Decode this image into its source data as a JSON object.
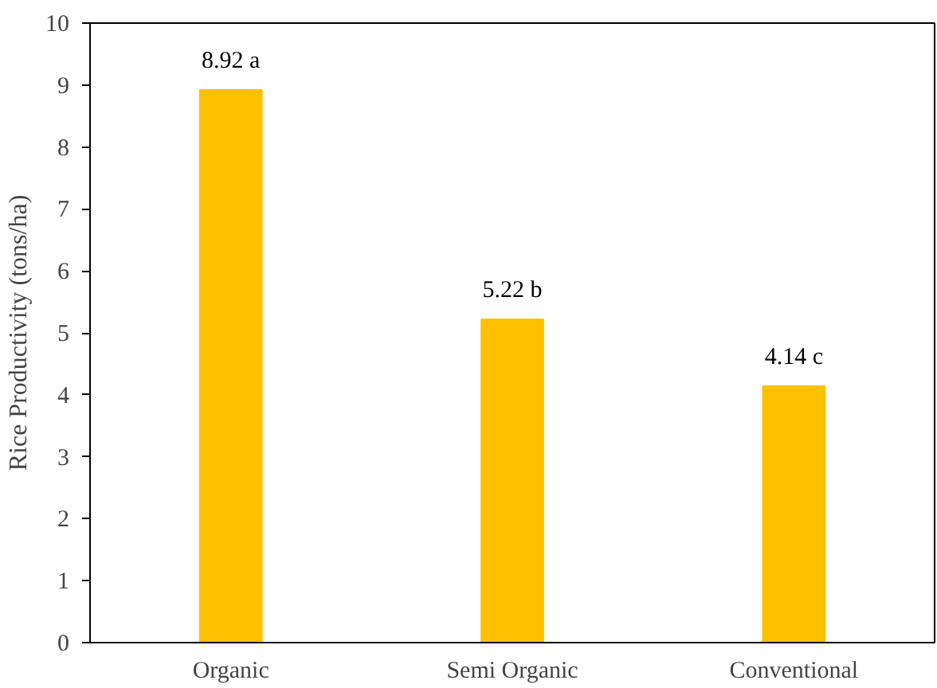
{
  "chart_data": {
    "type": "bar",
    "ylabel": "Rice Productivity (tons/ha)",
    "categories": [
      "Organic",
      "Semi Organic",
      "Conventional"
    ],
    "values": [
      8.92,
      5.22,
      4.14
    ],
    "value_labels": [
      "8.92 a",
      "5.22 b",
      "4.14 c"
    ],
    "color": "#ffc000",
    "ylim": [
      0,
      10
    ],
    "yticks": [
      0,
      1,
      2,
      3,
      4,
      5,
      6,
      7,
      8,
      9,
      10
    ],
    "grid": false
  }
}
